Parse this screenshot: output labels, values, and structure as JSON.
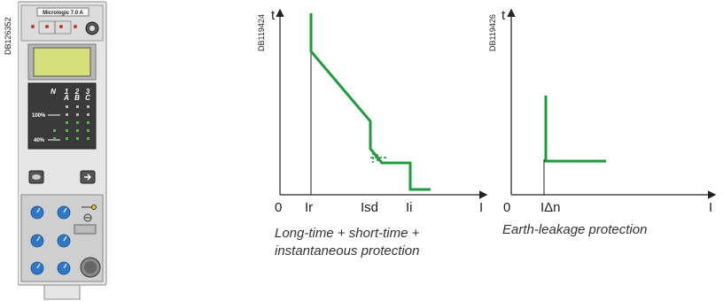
{
  "device": {
    "ref": "DB126352",
    "model": "Micrologic 7.0 A",
    "bar_phases": [
      "N",
      "1",
      "2",
      "3"
    ],
    "bar_phase_letters": [
      "",
      "A",
      "B",
      "C"
    ],
    "level_100": "100%",
    "level_40": "40%"
  },
  "diagram1": {
    "ref": "DB119424",
    "t_label": "t",
    "i_label": "I",
    "origin": "0",
    "x_ticks": [
      "Ir",
      "Isd",
      "Ii"
    ],
    "caption_line1": "Long-time + short-time +",
    "caption_line2": "instantaneous protection"
  },
  "diagram2": {
    "ref": "DB119426",
    "t_label": "t",
    "i_label": "I",
    "origin": "0",
    "x_tick": "IΔn",
    "caption": "Earth-leakage protection"
  },
  "colors": {
    "curve": "#1f9a3e",
    "device_body": "#e4e4e4",
    "display": "#d6e07a",
    "panel_dark": "#3a3a3a"
  }
}
